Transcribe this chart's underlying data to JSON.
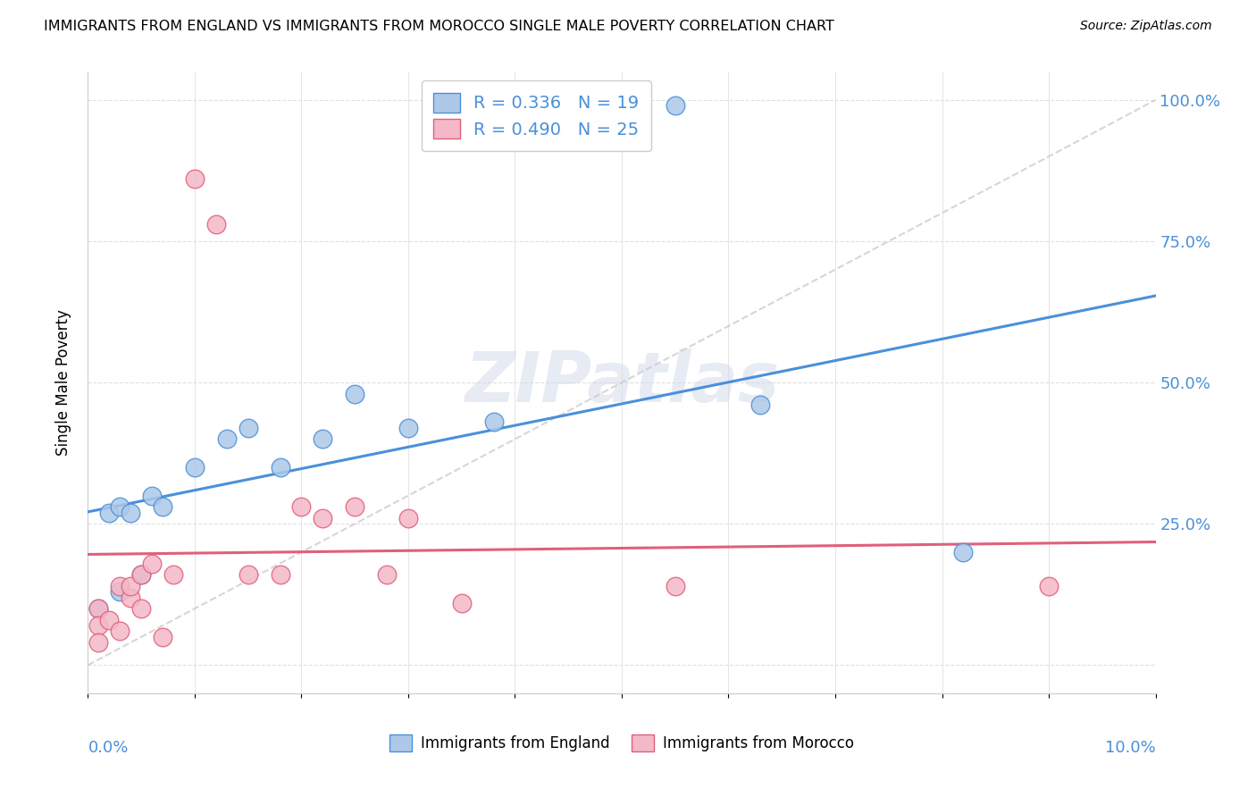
{
  "title": "IMMIGRANTS FROM ENGLAND VS IMMIGRANTS FROM MOROCCO SINGLE MALE POVERTY CORRELATION CHART",
  "source": "Source: ZipAtlas.com",
  "ylabel": "Single Male Poverty",
  "ylabel_right_ticks": [
    "25.0%",
    "50.0%",
    "75.0%",
    "100.0%"
  ],
  "ylabel_right_vals": [
    0.25,
    0.5,
    0.75,
    1.0
  ],
  "watermark": "ZIPatlas",
  "england_R": "0.336",
  "england_N": 19,
  "morocco_R": "0.490",
  "morocco_N": 25,
  "england_color": "#adc8e8",
  "england_line_color": "#4a90d9",
  "morocco_color": "#f4b8c8",
  "morocco_line_color": "#e0607a",
  "diagonal_color": "#cccccc",
  "england_x": [
    0.001,
    0.002,
    0.003,
    0.003,
    0.004,
    0.005,
    0.006,
    0.007,
    0.01,
    0.013,
    0.015,
    0.018,
    0.022,
    0.025,
    0.03,
    0.038,
    0.055,
    0.063,
    0.082
  ],
  "england_y": [
    0.1,
    0.27,
    0.13,
    0.28,
    0.27,
    0.16,
    0.3,
    0.28,
    0.35,
    0.4,
    0.42,
    0.35,
    0.4,
    0.48,
    0.42,
    0.43,
    0.99,
    0.46,
    0.2
  ],
  "morocco_x": [
    0.001,
    0.001,
    0.001,
    0.002,
    0.003,
    0.003,
    0.004,
    0.004,
    0.005,
    0.005,
    0.006,
    0.007,
    0.008,
    0.01,
    0.012,
    0.015,
    0.018,
    0.02,
    0.022,
    0.025,
    0.028,
    0.03,
    0.035,
    0.055,
    0.09
  ],
  "morocco_y": [
    0.1,
    0.07,
    0.04,
    0.08,
    0.14,
    0.06,
    0.12,
    0.14,
    0.16,
    0.1,
    0.18,
    0.05,
    0.16,
    0.86,
    0.78,
    0.16,
    0.16,
    0.28,
    0.26,
    0.28,
    0.16,
    0.26,
    0.11,
    0.14,
    0.14
  ],
  "xlim": [
    0.0,
    0.1
  ],
  "ylim": [
    -0.05,
    1.05
  ],
  "background_color": "#ffffff",
  "grid_color": "#e0e0e0"
}
